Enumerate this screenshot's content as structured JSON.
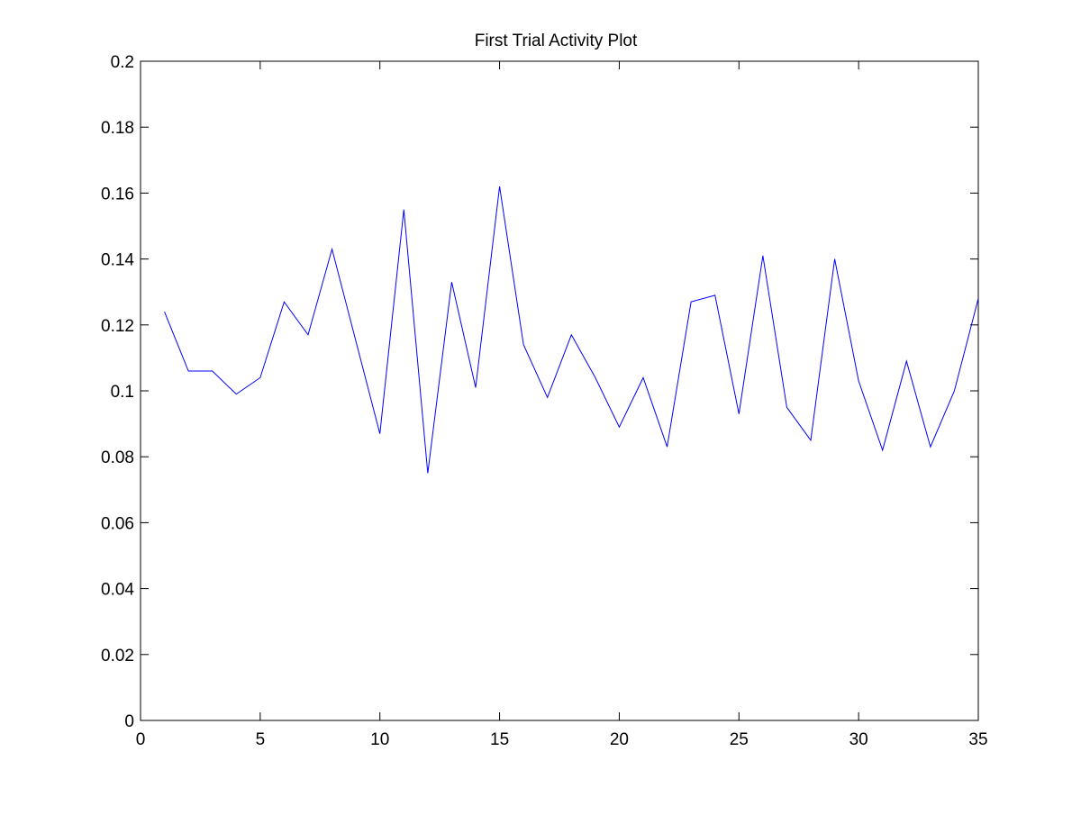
{
  "chart_data": {
    "type": "line",
    "title": "First Trial Activity Plot",
    "xlabel": "",
    "ylabel": "",
    "xlim": [
      0,
      35
    ],
    "ylim": [
      0,
      0.2
    ],
    "x_ticks": [
      0,
      5,
      10,
      15,
      20,
      25,
      30,
      35
    ],
    "x_tick_labels": [
      "0",
      "5",
      "10",
      "15",
      "20",
      "25",
      "30",
      "35"
    ],
    "y_ticks": [
      0,
      0.02,
      0.04,
      0.06,
      0.08,
      0.1,
      0.12,
      0.14,
      0.16,
      0.18,
      0.2
    ],
    "y_tick_labels": [
      "0",
      "0.02",
      "0.04",
      "0.06",
      "0.08",
      "0.1",
      "0.12",
      "0.14",
      "0.16",
      "0.18",
      "0.2"
    ],
    "grid": false,
    "series": [
      {
        "color": "#0000ff",
        "x": [
          1,
          2,
          3,
          4,
          5,
          6,
          7,
          8,
          9,
          10,
          11,
          12,
          13,
          14,
          15,
          16,
          17,
          18,
          19,
          20,
          21,
          22,
          23,
          24,
          25,
          26,
          27,
          28,
          29,
          30,
          31,
          32,
          33,
          34,
          35
        ],
        "values": [
          0.124,
          0.106,
          0.106,
          0.099,
          0.104,
          0.127,
          0.117,
          0.143,
          0.115,
          0.087,
          0.155,
          0.075,
          0.133,
          0.101,
          0.162,
          0.114,
          0.098,
          0.117,
          0.104,
          0.089,
          0.104,
          0.083,
          0.127,
          0.129,
          0.093,
          0.141,
          0.095,
          0.085,
          0.14,
          0.103,
          0.082,
          0.109,
          0.083,
          0.1,
          0.128
        ]
      }
    ]
  }
}
